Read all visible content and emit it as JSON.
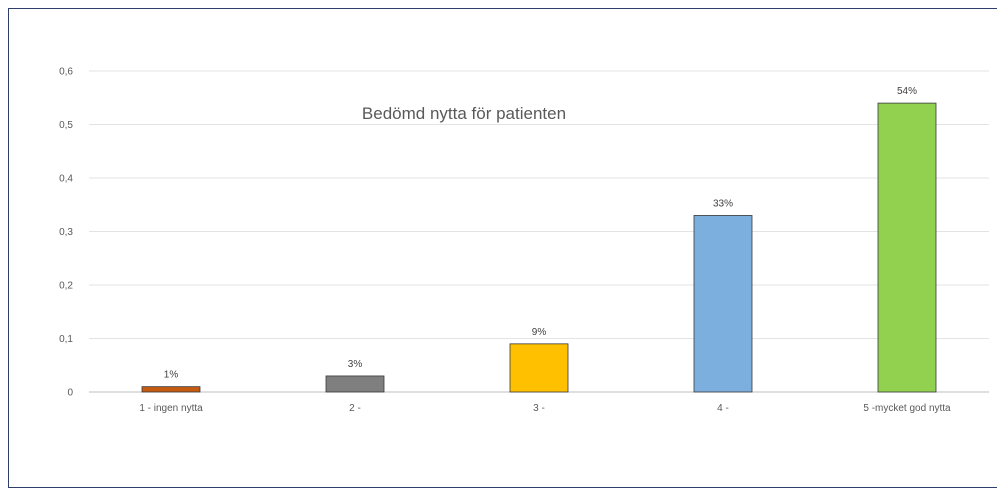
{
  "chart_data": {
    "type": "bar",
    "title": "Bedömd nytta för patienten",
    "categories": [
      "1 - ingen nytta",
      "2 -",
      "3 -",
      "4 -",
      "5 -mycket god nytta"
    ],
    "values": [
      0.01,
      0.03,
      0.09,
      0.33,
      0.54
    ],
    "data_labels": [
      "1%",
      "3%",
      "9%",
      "33%",
      "54%"
    ],
    "colors": [
      "#c55a11",
      "#7f7f7f",
      "#ffc000",
      "#7cafdd",
      "#92d050"
    ],
    "yticks": [
      "0",
      "0,1",
      "0,2",
      "0,3",
      "0,4",
      "0,5",
      "0,6"
    ],
    "ylim": [
      0,
      0.6
    ],
    "grid": true,
    "legend": "none"
  }
}
